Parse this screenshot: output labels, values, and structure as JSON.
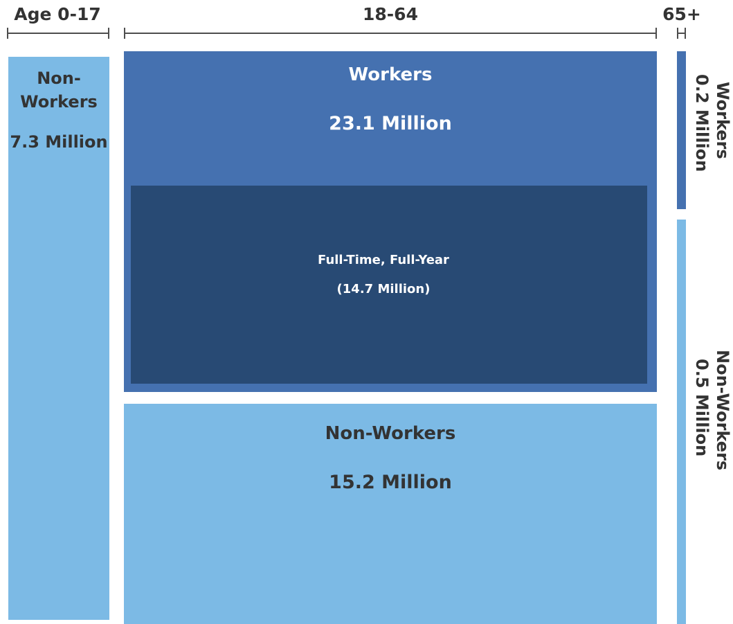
{
  "headers": {
    "child": "Age 0-17",
    "adult": "18-64",
    "senior": "65+"
  },
  "child": {
    "nonworkers_label": "Non-\nWorkers",
    "nonworkers_value": "7.3 Million"
  },
  "adult": {
    "workers_label": "Workers",
    "workers_value": "23.1 Million",
    "fulltime_label": "Full-Time, Full-Year",
    "fulltime_value": "(14.7 Million)",
    "nonworkers_label": "Non-Workers",
    "nonworkers_value": "15.2 Million"
  },
  "senior": {
    "workers_label": "Workers",
    "workers_value": "0.2 Million",
    "nonworkers_label": "Non-Workers",
    "nonworkers_value": "0.5 Million"
  },
  "colors": {
    "light_blue": "#7cbae5",
    "mid_blue": "#4571b0",
    "dark_blue": "#284a74",
    "text_dark": "#333333",
    "text_light": "#ffffff"
  }
}
